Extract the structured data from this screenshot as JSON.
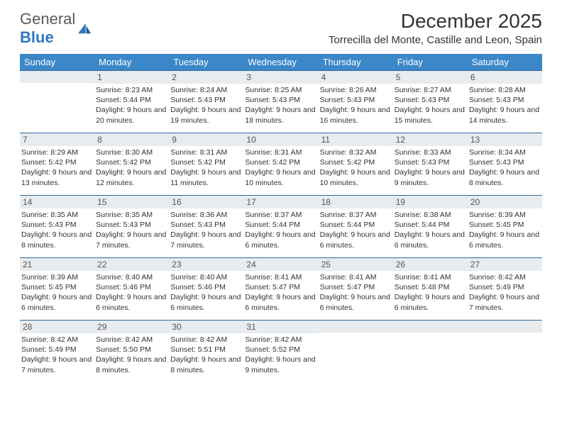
{
  "logo": {
    "general": "General",
    "blue": "Blue"
  },
  "title": "December 2025",
  "location": "Torrecilla del Monte, Castille and Leon, Spain",
  "headers_bg": "#3b87c8",
  "header_text_color": "#ffffff",
  "daybar_bg": "#e8ecef",
  "daybar_border": "#2f6aa0",
  "weekdays": [
    "Sunday",
    "Monday",
    "Tuesday",
    "Wednesday",
    "Thursday",
    "Friday",
    "Saturday"
  ],
  "weeks": [
    [
      null,
      {
        "n": "1",
        "sr": "8:23 AM",
        "ss": "5:44 PM",
        "dl": "9 hours and 20 minutes."
      },
      {
        "n": "2",
        "sr": "8:24 AM",
        "ss": "5:43 PM",
        "dl": "9 hours and 19 minutes."
      },
      {
        "n": "3",
        "sr": "8:25 AM",
        "ss": "5:43 PM",
        "dl": "9 hours and 18 minutes."
      },
      {
        "n": "4",
        "sr": "8:26 AM",
        "ss": "5:43 PM",
        "dl": "9 hours and 16 minutes."
      },
      {
        "n": "5",
        "sr": "8:27 AM",
        "ss": "5:43 PM",
        "dl": "9 hours and 15 minutes."
      },
      {
        "n": "6",
        "sr": "8:28 AM",
        "ss": "5:43 PM",
        "dl": "9 hours and 14 minutes."
      }
    ],
    [
      {
        "n": "7",
        "sr": "8:29 AM",
        "ss": "5:42 PM",
        "dl": "9 hours and 13 minutes."
      },
      {
        "n": "8",
        "sr": "8:30 AM",
        "ss": "5:42 PM",
        "dl": "9 hours and 12 minutes."
      },
      {
        "n": "9",
        "sr": "8:31 AM",
        "ss": "5:42 PM",
        "dl": "9 hours and 11 minutes."
      },
      {
        "n": "10",
        "sr": "8:31 AM",
        "ss": "5:42 PM",
        "dl": "9 hours and 10 minutes."
      },
      {
        "n": "11",
        "sr": "8:32 AM",
        "ss": "5:42 PM",
        "dl": "9 hours and 10 minutes."
      },
      {
        "n": "12",
        "sr": "8:33 AM",
        "ss": "5:43 PM",
        "dl": "9 hours and 9 minutes."
      },
      {
        "n": "13",
        "sr": "8:34 AM",
        "ss": "5:43 PM",
        "dl": "9 hours and 8 minutes."
      }
    ],
    [
      {
        "n": "14",
        "sr": "8:35 AM",
        "ss": "5:43 PM",
        "dl": "9 hours and 8 minutes."
      },
      {
        "n": "15",
        "sr": "8:35 AM",
        "ss": "5:43 PM",
        "dl": "9 hours and 7 minutes."
      },
      {
        "n": "16",
        "sr": "8:36 AM",
        "ss": "5:43 PM",
        "dl": "9 hours and 7 minutes."
      },
      {
        "n": "17",
        "sr": "8:37 AM",
        "ss": "5:44 PM",
        "dl": "9 hours and 6 minutes."
      },
      {
        "n": "18",
        "sr": "8:37 AM",
        "ss": "5:44 PM",
        "dl": "9 hours and 6 minutes."
      },
      {
        "n": "19",
        "sr": "8:38 AM",
        "ss": "5:44 PM",
        "dl": "9 hours and 6 minutes."
      },
      {
        "n": "20",
        "sr": "8:39 AM",
        "ss": "5:45 PM",
        "dl": "9 hours and 6 minutes."
      }
    ],
    [
      {
        "n": "21",
        "sr": "8:39 AM",
        "ss": "5:45 PM",
        "dl": "9 hours and 6 minutes."
      },
      {
        "n": "22",
        "sr": "8:40 AM",
        "ss": "5:46 PM",
        "dl": "9 hours and 6 minutes."
      },
      {
        "n": "23",
        "sr": "8:40 AM",
        "ss": "5:46 PM",
        "dl": "9 hours and 6 minutes."
      },
      {
        "n": "24",
        "sr": "8:41 AM",
        "ss": "5:47 PM",
        "dl": "9 hours and 6 minutes."
      },
      {
        "n": "25",
        "sr": "8:41 AM",
        "ss": "5:47 PM",
        "dl": "9 hours and 6 minutes."
      },
      {
        "n": "26",
        "sr": "8:41 AM",
        "ss": "5:48 PM",
        "dl": "9 hours and 6 minutes."
      },
      {
        "n": "27",
        "sr": "8:42 AM",
        "ss": "5:49 PM",
        "dl": "9 hours and 7 minutes."
      }
    ],
    [
      {
        "n": "28",
        "sr": "8:42 AM",
        "ss": "5:49 PM",
        "dl": "9 hours and 7 minutes."
      },
      {
        "n": "29",
        "sr": "8:42 AM",
        "ss": "5:50 PM",
        "dl": "9 hours and 8 minutes."
      },
      {
        "n": "30",
        "sr": "8:42 AM",
        "ss": "5:51 PM",
        "dl": "9 hours and 8 minutes."
      },
      {
        "n": "31",
        "sr": "8:42 AM",
        "ss": "5:52 PM",
        "dl": "9 hours and 9 minutes."
      },
      null,
      null,
      null
    ]
  ],
  "labels": {
    "sunrise": "Sunrise: ",
    "sunset": "Sunset: ",
    "daylight": "Daylight: "
  }
}
